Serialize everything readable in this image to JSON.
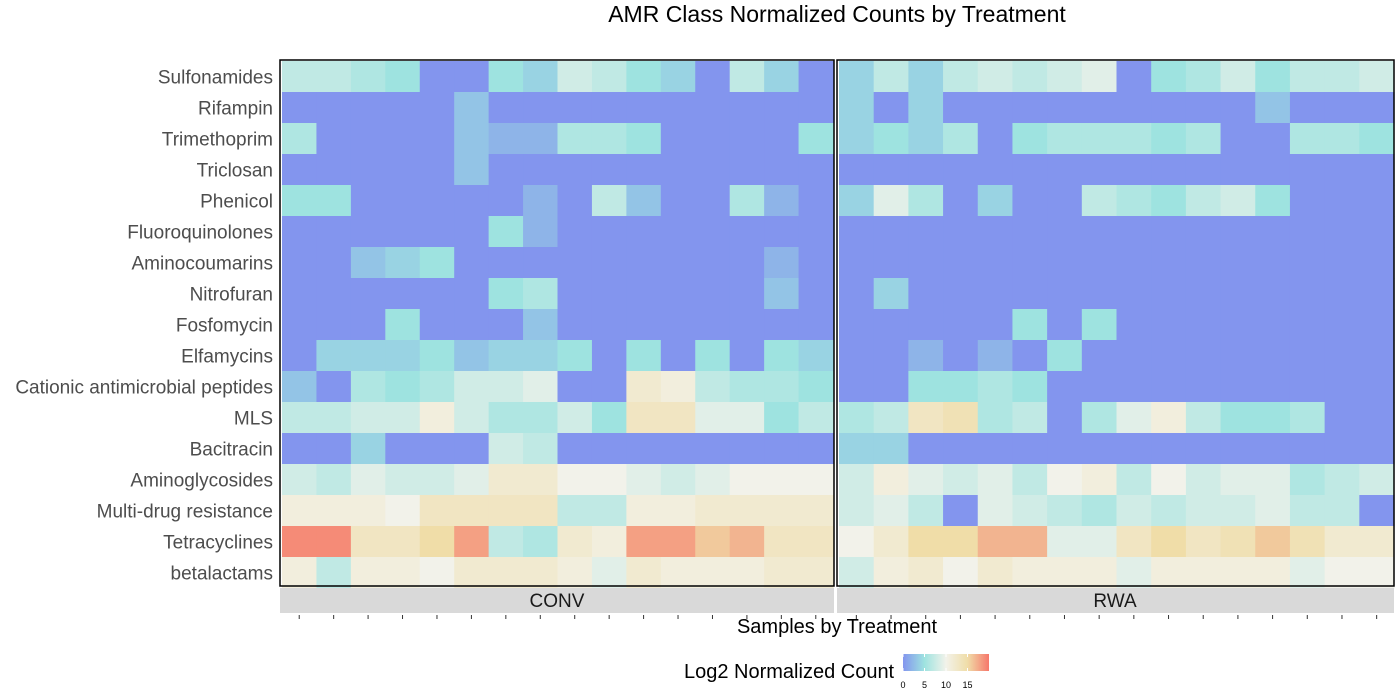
{
  "chart_data": {
    "type": "heatmap",
    "title": "AMR Class Normalized Counts by Treatment",
    "xlabel": "Samples by Treatment",
    "ylabel": "",
    "facets": [
      "CONV",
      "RWA"
    ],
    "samples_per_facet": [
      16,
      16
    ],
    "rows": [
      "Sulfonamides",
      "Rifampin",
      "Trimethoprim",
      "Triclosan",
      "Phenicol",
      "Fluoroquinolones",
      "Aminocoumarins",
      "Nitrofuran",
      "Fosfomycin",
      "Elfamycins",
      "Cationic antimicrobial peptides",
      "MLS",
      "Bacitracin",
      "Aminoglycosides",
      "Multi-drug resistance",
      "Tetracyclines",
      "betalactams"
    ],
    "legend": {
      "title": "Log2 Normalized Count",
      "ticks": [
        0,
        5,
        10,
        15
      ],
      "range": [
        0,
        20
      ],
      "colors": [
        "#8395ee",
        "#9ee3e0",
        "#f2f2ea",
        "#f0dda8",
        "#f6776b"
      ]
    },
    "values": {
      "CONV": [
        [
          7,
          7,
          6,
          5,
          0,
          0,
          5,
          4,
          8,
          7,
          5,
          4,
          0,
          7,
          4,
          0
        ],
        [
          0,
          0,
          0,
          0,
          0,
          3,
          0,
          0,
          0,
          0,
          0,
          0,
          0,
          0,
          0,
          0
        ],
        [
          6,
          0,
          0,
          0,
          0,
          3,
          2,
          2,
          6,
          6,
          5,
          0,
          0,
          0,
          0,
          5
        ],
        [
          0,
          0,
          0,
          0,
          0,
          3,
          0,
          0,
          0,
          0,
          0,
          0,
          0,
          0,
          0,
          0
        ],
        [
          5,
          5,
          0,
          0,
          0,
          0,
          0,
          2,
          0,
          7,
          3,
          0,
          0,
          6,
          2,
          0
        ],
        [
          0,
          0,
          0,
          0,
          0,
          0,
          5,
          2,
          0,
          0,
          0,
          0,
          0,
          0,
          0,
          0
        ],
        [
          0,
          0,
          3,
          4,
          5,
          0,
          0,
          0,
          0,
          0,
          0,
          0,
          0,
          0,
          2,
          0
        ],
        [
          0,
          0,
          0,
          0,
          0,
          0,
          5,
          6,
          0,
          0,
          0,
          0,
          0,
          0,
          3,
          0
        ],
        [
          0,
          0,
          0,
          5,
          0,
          0,
          0,
          3,
          0,
          0,
          0,
          0,
          0,
          0,
          0,
          0
        ],
        [
          0,
          4,
          4,
          4,
          5,
          3,
          4,
          4,
          5,
          0,
          5,
          0,
          5,
          0,
          5,
          4
        ],
        [
          3,
          0,
          6,
          5,
          6,
          8,
          8,
          9,
          0,
          0,
          12,
          11,
          7,
          6,
          6,
          5
        ],
        [
          7,
          7,
          8,
          8,
          11,
          8,
          6,
          6,
          8,
          5,
          13,
          13,
          9,
          9,
          5,
          7
        ],
        [
          0,
          0,
          4,
          0,
          0,
          0,
          8,
          7,
          0,
          0,
          0,
          0,
          0,
          0,
          0,
          0
        ],
        [
          8,
          7,
          9,
          8,
          8,
          9,
          12,
          12,
          10,
          10,
          9,
          8,
          9,
          10,
          10,
          10
        ],
        [
          11,
          11,
          11,
          10,
          13,
          13,
          13,
          13,
          7,
          7,
          11,
          11,
          12,
          12,
          12,
          12
        ],
        [
          19,
          19,
          13,
          13,
          15,
          18,
          7,
          6,
          12,
          11,
          18,
          18,
          16,
          17,
          13,
          13
        ],
        [
          11,
          7,
          11,
          11,
          10,
          12,
          12,
          12,
          11,
          9,
          12,
          11,
          11,
          11,
          12,
          12
        ]
      ],
      "RWA": [
        [
          4,
          7,
          4,
          7,
          8,
          7,
          8,
          9,
          0,
          5,
          6,
          8,
          5,
          7,
          7,
          8
        ],
        [
          4,
          0,
          4,
          0,
          0,
          0,
          0,
          0,
          0,
          0,
          0,
          0,
          3,
          0,
          0,
          0
        ],
        [
          4,
          5,
          4,
          6,
          0,
          5,
          6,
          6,
          6,
          5,
          6,
          0,
          0,
          6,
          6,
          5
        ],
        [
          0,
          0,
          0,
          0,
          0,
          0,
          0,
          0,
          0,
          0,
          0,
          0,
          0,
          0,
          0,
          0
        ],
        [
          4,
          9,
          6,
          0,
          4,
          0,
          0,
          7,
          6,
          5,
          7,
          8,
          5,
          0,
          0,
          0
        ],
        [
          0,
          0,
          0,
          0,
          0,
          0,
          0,
          0,
          0,
          0,
          0,
          0,
          0,
          0,
          0,
          0
        ],
        [
          0,
          0,
          0,
          0,
          0,
          0,
          0,
          0,
          0,
          0,
          0,
          0,
          0,
          0,
          0,
          0
        ],
        [
          0,
          4,
          0,
          0,
          0,
          0,
          0,
          0,
          0,
          0,
          0,
          0,
          0,
          0,
          0,
          0
        ],
        [
          0,
          0,
          0,
          0,
          0,
          5,
          0,
          5,
          0,
          0,
          0,
          0,
          0,
          0,
          0,
          0
        ],
        [
          0,
          0,
          2,
          0,
          2,
          0,
          5,
          0,
          0,
          0,
          0,
          0,
          0,
          0,
          0,
          0
        ],
        [
          0,
          0,
          5,
          5,
          6,
          5,
          0,
          0,
          0,
          0,
          0,
          0,
          0,
          0,
          0,
          0
        ],
        [
          6,
          7,
          13,
          14,
          6,
          7,
          0,
          6,
          9,
          11,
          7,
          5,
          5,
          6,
          0,
          0
        ],
        [
          4,
          4,
          0,
          0,
          0,
          0,
          0,
          0,
          0,
          0,
          0,
          0,
          0,
          0,
          0,
          0
        ],
        [
          8,
          11,
          9,
          8,
          9,
          7,
          10,
          11,
          7,
          10,
          8,
          9,
          9,
          6,
          7,
          8
        ],
        [
          8,
          9,
          7,
          0,
          9,
          8,
          7,
          6,
          8,
          7,
          8,
          8,
          9,
          7,
          7,
          0
        ],
        [
          10,
          12,
          15,
          15,
          17,
          17,
          9,
          9,
          13,
          15,
          13,
          14,
          16,
          14,
          12,
          12
        ],
        [
          8,
          11,
          12,
          10,
          12,
          11,
          11,
          11,
          9,
          11,
          11,
          11,
          11,
          9,
          10,
          10
        ]
      ]
    }
  }
}
